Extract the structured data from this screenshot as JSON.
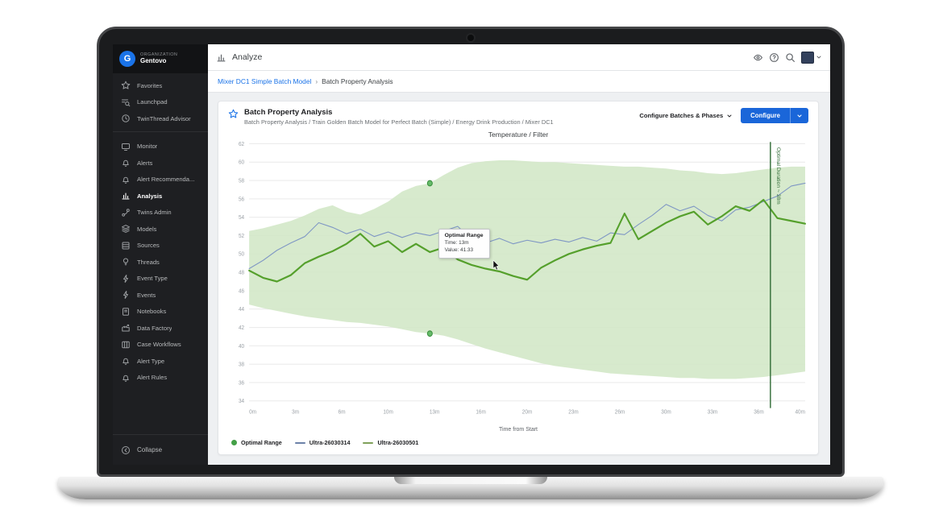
{
  "sidebar": {
    "org_label": "ORGANIZATION",
    "org_name": "Gentovo",
    "logo_letter": "G",
    "top_items": [
      "Favorites",
      "Launchpad",
      "TwinThread Advisor"
    ],
    "items": [
      "Monitor",
      "Alerts",
      "Alert Recommenda...",
      "Analysis",
      "Twins Admin",
      "Models",
      "Sources",
      "Threads",
      "Event Type",
      "Events",
      "Notebooks",
      "Data Factory",
      "Case Workflows",
      "Alert Type",
      "Alert Rules"
    ],
    "active_item": "Analysis",
    "collapse_label": "Collapse"
  },
  "topbar": {
    "title": "Analyze"
  },
  "breadcrumb": {
    "parent": "Mixer DC1 Simple Batch Model",
    "separator": "›",
    "current": "Batch Property Analysis"
  },
  "panel": {
    "title": "Batch Property Analysis",
    "subtitle": "Batch Property Analysis / Train Golden Batch Model for Perfect Batch (Simple) / Energy Drink Production / Mixer DC1",
    "configure_batches_label": "Configure Batches & Phases",
    "configure_label": "Configure"
  },
  "tooltip": {
    "title": "Optimal Range",
    "time": "Time: 13m",
    "value": "Value: 41.33"
  },
  "chart_data": {
    "type": "line",
    "title": "Temperature / Filter",
    "xlabel": "Time from Start",
    "ylabel": "",
    "xlim": [
      0,
      40
    ],
    "ylim": [
      34,
      62
    ],
    "yticks": [
      34,
      36,
      38,
      40,
      42,
      44,
      46,
      48,
      50,
      52,
      54,
      56,
      58,
      60,
      62
    ],
    "xtick_labels": [
      "0m",
      "3m",
      "6m",
      "10m",
      "13m",
      "16m",
      "20m",
      "23m",
      "26m",
      "30m",
      "33m",
      "36m",
      "40m"
    ],
    "grid": "horizontal",
    "legend_position": "bottom-left",
    "x": [
      0,
      1,
      2,
      3,
      4,
      5,
      6,
      7,
      8,
      9,
      10,
      11,
      12,
      13,
      14,
      15,
      16,
      17,
      18,
      19,
      20,
      21,
      22,
      23,
      24,
      25,
      26,
      27,
      28,
      29,
      30,
      31,
      32,
      33,
      34,
      35,
      36,
      37,
      38,
      39,
      40
    ],
    "band": {
      "name": "Optimal Range",
      "color": "#d2e7c6",
      "upper": [
        52.5,
        52.8,
        53.2,
        53.6,
        54.2,
        54.9,
        55.3,
        54.6,
        54.3,
        54.9,
        55.7,
        56.8,
        57.4,
        57.7,
        58.6,
        59.4,
        59.9,
        60.1,
        60.2,
        60.2,
        60.1,
        60.0,
        60.0,
        59.9,
        59.8,
        59.7,
        59.6,
        59.5,
        59.5,
        59.4,
        59.3,
        59.1,
        59.0,
        58.8,
        58.7,
        58.8,
        59.0,
        59.2,
        59.4,
        59.5,
        59.5
      ],
      "lower": [
        44.5,
        44.1,
        43.8,
        43.5,
        43.2,
        43.0,
        42.8,
        42.6,
        42.5,
        42.3,
        42.1,
        41.8,
        41.5,
        41.33,
        41.1,
        40.7,
        40.2,
        39.7,
        39.3,
        38.9,
        38.5,
        38.1,
        37.8,
        37.6,
        37.4,
        37.2,
        37.0,
        36.9,
        36.8,
        36.7,
        36.6,
        36.5,
        36.5,
        36.4,
        36.4,
        36.4,
        36.5,
        36.6,
        36.8,
        37.0,
        37.2
      ]
    },
    "series": [
      {
        "name": "Ultra-26030314",
        "color": "#7e96c4",
        "width": 1,
        "values": [
          48.4,
          49.3,
          50.4,
          51.2,
          51.9,
          53.4,
          52.9,
          52.2,
          52.7,
          51.9,
          52.4,
          51.8,
          52.3,
          52.0,
          52.5,
          53.0,
          51.6,
          51.2,
          51.7,
          51.1,
          51.5,
          51.2,
          51.6,
          51.3,
          51.8,
          51.4,
          52.3,
          52.1,
          53.2,
          54.2,
          55.4,
          54.7,
          55.2,
          54.2,
          53.6,
          54.8,
          55.1,
          55.7,
          56.3,
          57.4,
          57.7
        ]
      },
      {
        "name": "Ultra-26030501",
        "color": "#55a02c",
        "width": 2,
        "values": [
          48.2,
          47.4,
          47.0,
          47.7,
          49.0,
          49.7,
          50.3,
          51.1,
          52.2,
          50.8,
          51.4,
          50.2,
          51.1,
          50.2,
          50.7,
          49.4,
          48.8,
          48.4,
          48.1,
          47.6,
          47.2,
          48.5,
          49.3,
          50.0,
          50.5,
          50.9,
          51.2,
          54.4,
          51.6,
          52.5,
          53.4,
          54.1,
          54.6,
          53.2,
          54.1,
          55.2,
          54.7,
          55.9,
          53.9,
          53.6,
          53.3
        ]
      }
    ],
    "markers": [
      {
        "x": 13,
        "y": 57.7
      },
      {
        "x": 13,
        "y": 41.33
      }
    ],
    "vline": {
      "x": 37.5,
      "label": "Optimal Duration ~ 38m",
      "color": "#2f6b35"
    },
    "legend": [
      {
        "label": "Optimal Range",
        "type": "dot",
        "color": "#43a047"
      },
      {
        "label": "Ultra-26030314",
        "type": "line",
        "color": "#6c82a8"
      },
      {
        "label": "Ultra-26030501",
        "type": "line",
        "color": "#7fa05a"
      }
    ]
  }
}
